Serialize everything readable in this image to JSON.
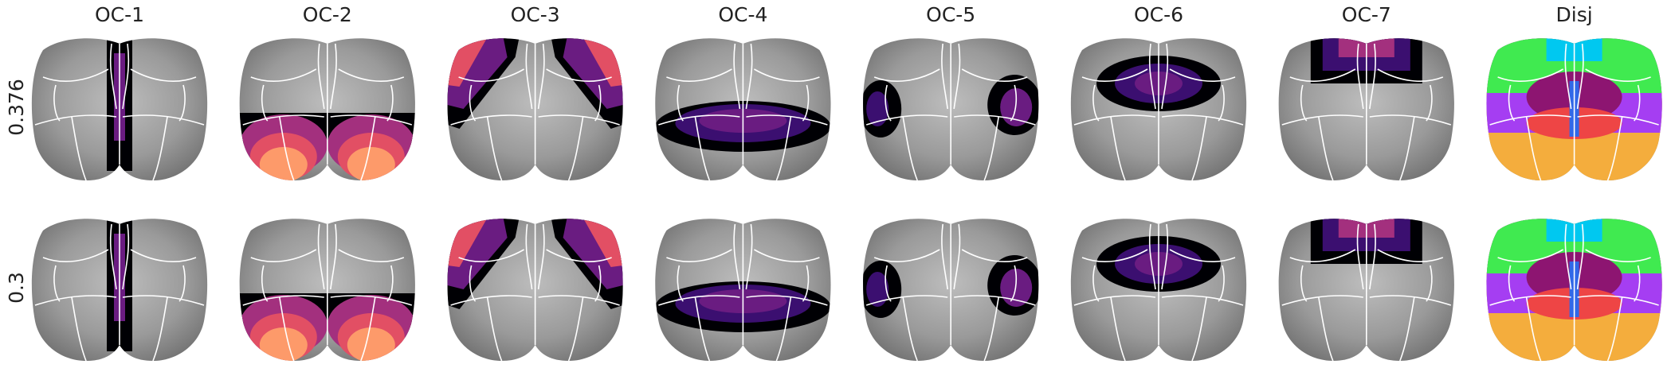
{
  "columns": [
    "OC-1",
    "OC-2",
    "OC-3",
    "OC-4",
    "OC-5",
    "OC-6",
    "OC-7",
    "Disj"
  ],
  "rows": [
    "0.376",
    "0.3"
  ]
}
